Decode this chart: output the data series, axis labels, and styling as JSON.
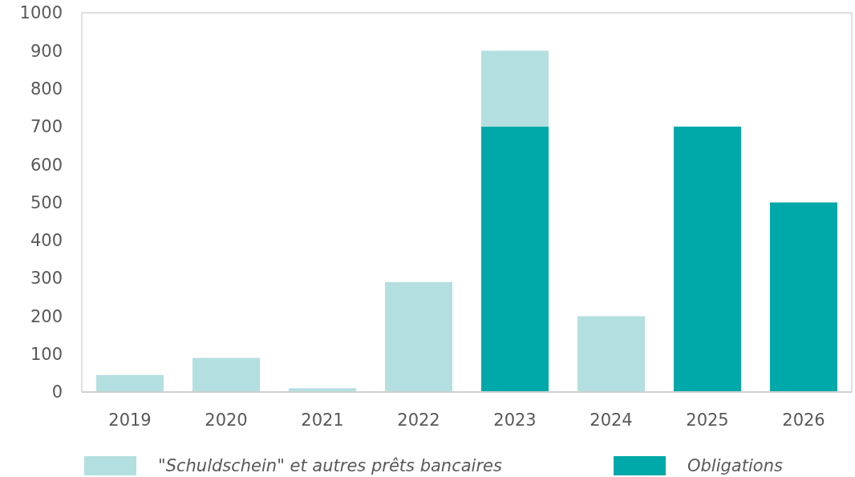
{
  "chart_data": {
    "type": "bar",
    "stacked": true,
    "categories": [
      "2019",
      "2020",
      "2021",
      "2022",
      "2023",
      "2024",
      "2025",
      "2026"
    ],
    "series": [
      {
        "name": "Obligations",
        "color": "#00a9a9",
        "values": [
          0,
          0,
          0,
          0,
          700,
          0,
          700,
          500
        ]
      },
      {
        "name": "\"Schuldschein\" et autres prêts bancaires",
        "color": "#b4dfe0",
        "values": [
          45,
          90,
          10,
          290,
          200,
          200,
          0,
          0
        ]
      }
    ],
    "ylim": [
      0,
      1000
    ],
    "yticks": [
      0,
      100,
      200,
      300,
      400,
      500,
      600,
      700,
      800,
      900,
      1000
    ],
    "grid": false,
    "legend": "bottom"
  }
}
